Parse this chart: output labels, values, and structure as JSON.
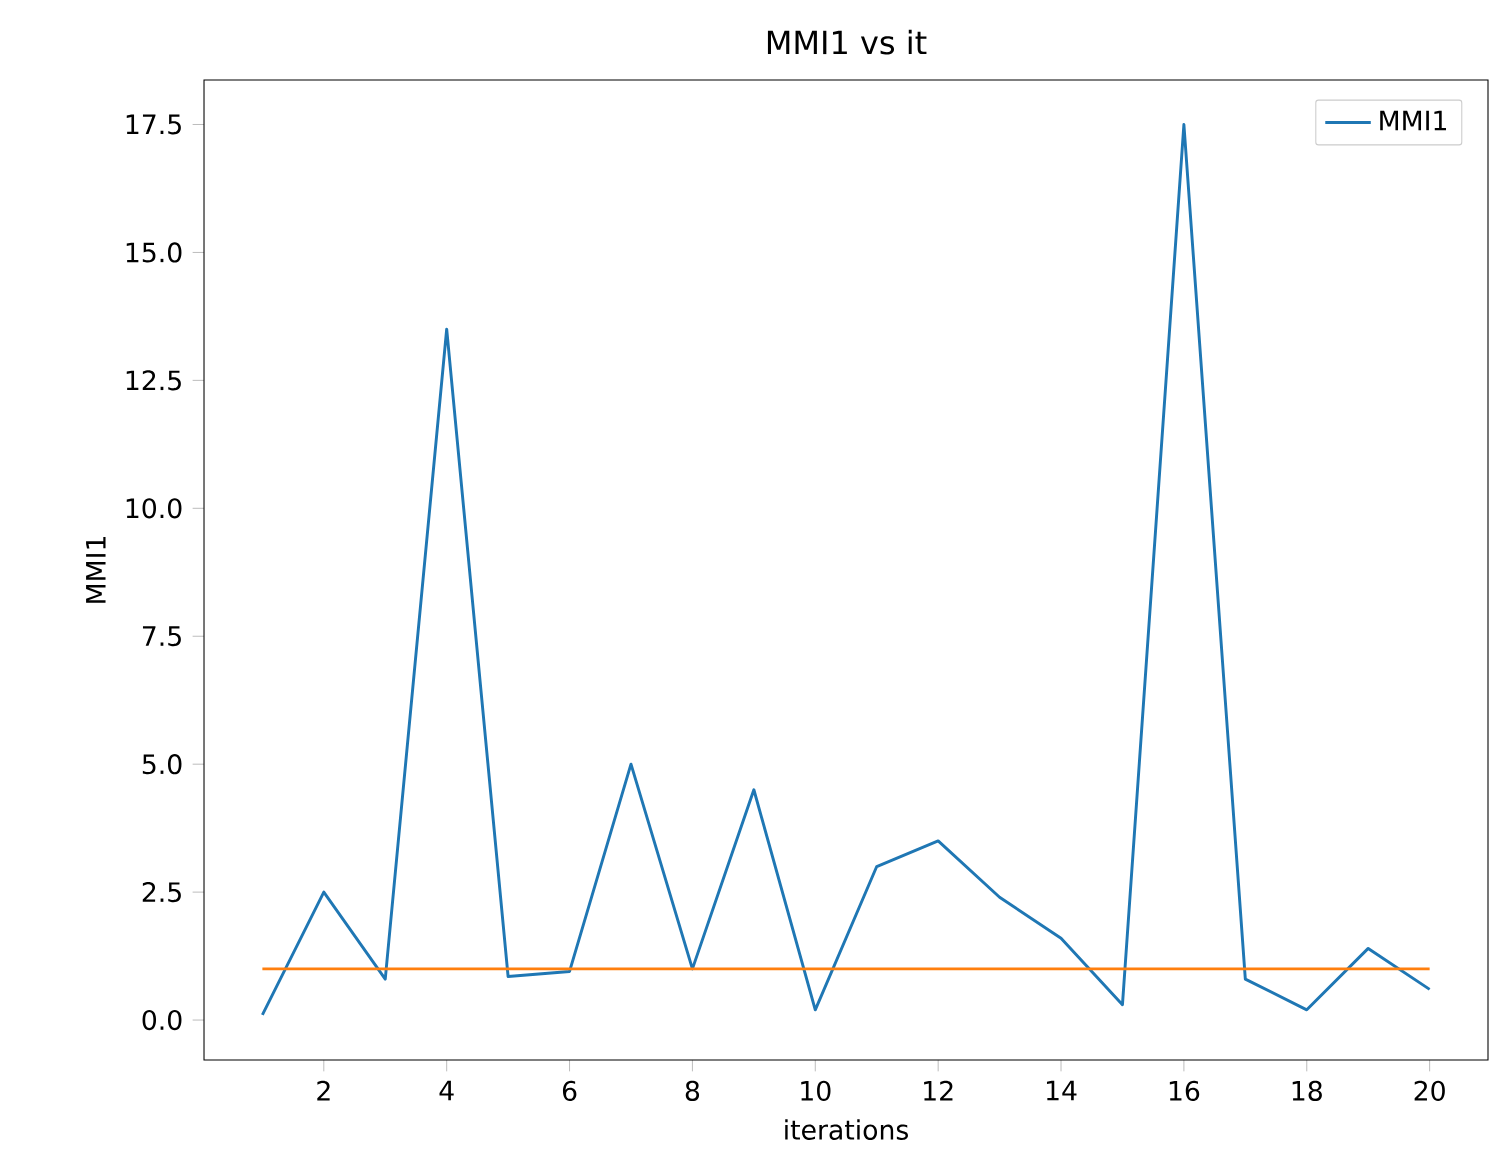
{
  "chart_data": {
    "type": "line",
    "title": "MMI1 vs it",
    "xlabel": "iterations",
    "ylabel": "MMI1",
    "x": [
      1,
      2,
      3,
      4,
      5,
      6,
      7,
      8,
      9,
      10,
      11,
      12,
      13,
      14,
      15,
      16,
      17,
      18,
      19,
      20
    ],
    "series": [
      {
        "name": "MMI1",
        "color": "#1f77b4",
        "values": [
          0.1,
          2.5,
          0.8,
          13.5,
          0.85,
          0.95,
          5.0,
          1.0,
          4.5,
          0.2,
          3.0,
          3.5,
          2.4,
          1.6,
          0.3,
          17.5,
          0.8,
          0.2,
          1.4,
          0.6
        ]
      },
      {
        "color": "#ff7f0e",
        "values": [
          1,
          1,
          1,
          1,
          1,
          1,
          1,
          1,
          1,
          1,
          1,
          1,
          1,
          1,
          1,
          1,
          1,
          1,
          1,
          1
        ]
      }
    ],
    "xlim": [
      0.05,
      20.95
    ],
    "ylim": [
      -0.78,
      18.37
    ],
    "xticks": [
      2,
      4,
      6,
      8,
      10,
      12,
      14,
      16,
      18,
      20
    ],
    "yticks": [
      {
        "value": 0,
        "label": "0.0"
      },
      {
        "value": 2.5,
        "label": "2.5"
      },
      {
        "value": 5,
        "label": "5.0"
      },
      {
        "value": 7.5,
        "label": "7.5"
      },
      {
        "value": 10,
        "label": "10.0"
      },
      {
        "value": 12.5,
        "label": "12.5"
      },
      {
        "value": 15,
        "label": "15.0"
      },
      {
        "value": 17.5,
        "label": "17.5"
      }
    ],
    "legend": "top right",
    "grid": false,
    "marker": "none",
    "line_style": "solid"
  }
}
